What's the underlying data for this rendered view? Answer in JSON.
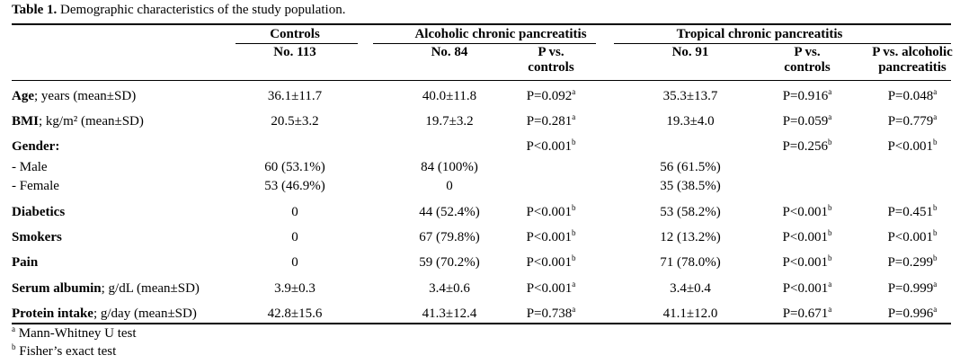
{
  "title": {
    "label": "Table 1.",
    "text": " Demographic characteristics of the study population."
  },
  "groups": {
    "controls": "Controls",
    "alcoholic": "Alcoholic chronic pancreatitis",
    "tropical": "Tropical chronic pancreatitis"
  },
  "subheaders": [
    {
      "l1": "No. 113",
      "l2": ""
    },
    {
      "l1": "No. 84",
      "l2": ""
    },
    {
      "l1": "P vs.",
      "l2": "controls"
    },
    {
      "l1": "No. 91",
      "l2": ""
    },
    {
      "l1": "P vs.",
      "l2": "controls"
    },
    {
      "l1": "P vs. alcoholic",
      "l2": "pancreatitis"
    }
  ],
  "rows": [
    {
      "bold": "Age",
      "rest": "; years (mean±SD)",
      "cells": [
        {
          "v": "36.1±11.7"
        },
        {
          "v": "40.0±11.8"
        },
        {
          "v": "P=0.092",
          "s": "a"
        },
        {
          "v": "35.3±13.7"
        },
        {
          "v": "P=0.916",
          "s": "a"
        },
        {
          "v": "P=0.048",
          "s": "a"
        }
      ]
    },
    {
      "bold": "BMI",
      "rest": "; kg/m² (mean±SD)",
      "cells": [
        {
          "v": "20.5±3.2"
        },
        {
          "v": "19.7±3.2"
        },
        {
          "v": "P=0.281",
          "s": "a"
        },
        {
          "v": "19.3±4.0"
        },
        {
          "v": "P=0.059",
          "s": "a"
        },
        {
          "v": "P=0.779",
          "s": "a"
        }
      ]
    },
    {
      "bold": "Gender:",
      "rest": "",
      "cells": [
        {
          "v": ""
        },
        {
          "v": ""
        },
        {
          "v": "P<0.001",
          "s": "b"
        },
        {
          "v": ""
        },
        {
          "v": "P=0.256",
          "s": "b"
        },
        {
          "v": "P<0.001",
          "s": "b"
        }
      ]
    },
    {
      "bold": "",
      "rest": "- Male",
      "cells": [
        {
          "v": "60 (53.1%)"
        },
        {
          "v": "84 (100%)"
        },
        {
          "v": ""
        },
        {
          "v": "56 (61.5%)"
        },
        {
          "v": ""
        },
        {
          "v": ""
        }
      ]
    },
    {
      "bold": "",
      "rest": "- Female",
      "cells": [
        {
          "v": "53 (46.9%)"
        },
        {
          "v": "0"
        },
        {
          "v": ""
        },
        {
          "v": "35 (38.5%)"
        },
        {
          "v": ""
        },
        {
          "v": ""
        }
      ]
    },
    {
      "bold": "Diabetics",
      "rest": "",
      "cells": [
        {
          "v": "0"
        },
        {
          "v": "44 (52.4%)"
        },
        {
          "v": "P<0.001",
          "s": "b"
        },
        {
          "v": "53 (58.2%)"
        },
        {
          "v": "P<0.001",
          "s": "b"
        },
        {
          "v": "P=0.451",
          "s": "b"
        }
      ]
    },
    {
      "bold": "Smokers",
      "rest": "",
      "cells": [
        {
          "v": "0"
        },
        {
          "v": "67 (79.8%)"
        },
        {
          "v": "P<0.001",
          "s": "b"
        },
        {
          "v": "12 (13.2%)"
        },
        {
          "v": "P<0.001",
          "s": "b"
        },
        {
          "v": "P<0.001",
          "s": "b"
        }
      ]
    },
    {
      "bold": "Pain",
      "rest": "",
      "cells": [
        {
          "v": "0"
        },
        {
          "v": "59 (70.2%)"
        },
        {
          "v": "P<0.001",
          "s": "b"
        },
        {
          "v": "71 (78.0%)"
        },
        {
          "v": "P<0.001",
          "s": "b"
        },
        {
          "v": "P=0.299",
          "s": "b"
        }
      ]
    },
    {
      "bold": "Serum albumin",
      "rest": "; g/dL (mean±SD)",
      "cells": [
        {
          "v": "3.9±0.3"
        },
        {
          "v": "3.4±0.6"
        },
        {
          "v": "P<0.001",
          "s": "a"
        },
        {
          "v": "3.4±0.4"
        },
        {
          "v": "P<0.001",
          "s": "a"
        },
        {
          "v": "P=0.999",
          "s": "a"
        }
      ]
    },
    {
      "bold": "Protein intake",
      "rest": "; g/day (mean±SD)",
      "cells": [
        {
          "v": "42.8±15.6"
        },
        {
          "v": "41.3±12.4"
        },
        {
          "v": "P=0.738",
          "s": "a"
        },
        {
          "v": "41.1±12.0"
        },
        {
          "v": "P=0.671",
          "s": "a"
        },
        {
          "v": "P=0.996",
          "s": "a"
        }
      ]
    }
  ],
  "footnotes": [
    {
      "s": "a",
      "text": " Mann-Whitney U test"
    },
    {
      "s": "b",
      "text": " Fisher’s exact test"
    }
  ]
}
